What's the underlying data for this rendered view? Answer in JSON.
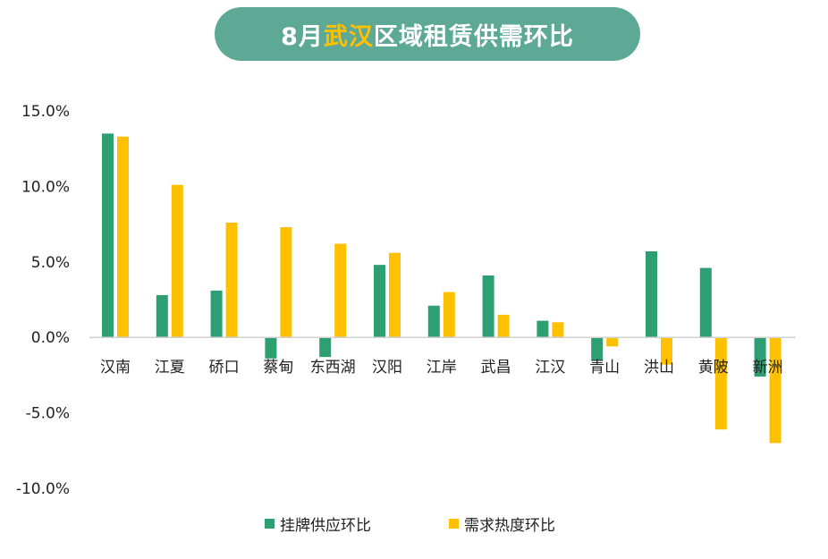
{
  "title": {
    "prefix": "8月",
    "highlight": "武汉",
    "suffix": "区域租赁供需环比"
  },
  "colors": {
    "title_bg": "#5ea996",
    "title_highlight": "#ffc000",
    "series_supply": "#2e9e73",
    "series_demand": "#ffc000"
  },
  "chart_data": {
    "type": "bar",
    "title": "8月武汉区域租赁供需环比",
    "xlabel": "",
    "ylabel": "",
    "ylim": [
      -10,
      15
    ],
    "yticks": [
      15,
      10,
      5,
      0,
      -5,
      -10
    ],
    "ytick_labels": [
      "15.0%",
      "10.0%",
      "5.0%",
      "0.0%",
      "-5.0%",
      "-10.0%"
    ],
    "grid": false,
    "legend_position": "bottom",
    "categories": [
      "汉南",
      "江夏",
      "硚口",
      "蔡甸",
      "东西湖",
      "汉阳",
      "江岸",
      "武昌",
      "江汉",
      "青山",
      "洪山",
      "黄陂",
      "新洲"
    ],
    "series": [
      {
        "name": "挂牌供应环比",
        "color": "#2e9e73",
        "values": [
          13.5,
          2.8,
          3.1,
          -1.4,
          -1.3,
          4.8,
          2.1,
          4.1,
          1.1,
          -1.5,
          5.7,
          4.6,
          -2.6
        ]
      },
      {
        "name": "需求热度环比",
        "color": "#ffc000",
        "values": [
          13.3,
          10.1,
          7.6,
          7.3,
          6.2,
          5.6,
          3.0,
          1.5,
          1.0,
          -0.6,
          -1.8,
          -6.1,
          -7.0
        ]
      }
    ]
  }
}
